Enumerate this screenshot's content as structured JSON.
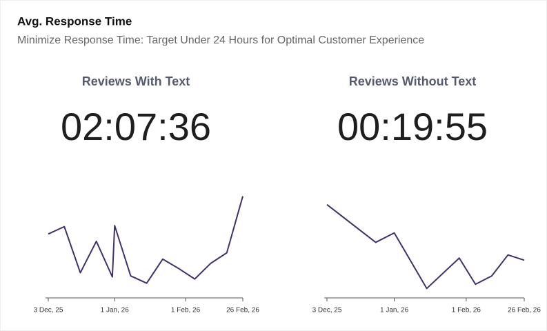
{
  "header": {
    "title": "Avg. Response Time",
    "subtitle": "Minimize Response Time: Target Under 24 Hours for Optimal Customer Experience"
  },
  "chart_data": [
    {
      "type": "line",
      "title": "Reviews With Text",
      "kpi": "02:07:36",
      "color": "#41306b",
      "x": [
        0,
        7,
        14,
        21,
        28,
        29,
        36,
        43,
        50,
        57,
        64,
        71,
        78,
        85
      ],
      "values": [
        61,
        68,
        24,
        54,
        20,
        69,
        21,
        14,
        37,
        28,
        18,
        33,
        43,
        97
      ],
      "xlim": [
        0,
        85
      ],
      "ylim": [
        0,
        100
      ],
      "xticks": [
        {
          "value": 0,
          "label": "3 Dec, 25"
        },
        {
          "value": 29,
          "label": "1 Jan, 26"
        },
        {
          "value": 60,
          "label": "1 Feb, 26"
        },
        {
          "value": 85,
          "label": "26 Feb, 26"
        }
      ]
    },
    {
      "type": "line",
      "title": "Reviews Without Text",
      "kpi": "00:19:55",
      "color": "#41306b",
      "x": [
        0,
        21,
        29,
        43,
        57,
        64,
        71,
        78,
        85
      ],
      "values": [
        89,
        53,
        62,
        9,
        38,
        13,
        21,
        41,
        36
      ],
      "xlim": [
        0,
        85
      ],
      "ylim": [
        0,
        100
      ],
      "xticks": [
        {
          "value": 0,
          "label": "3 Dec, 25"
        },
        {
          "value": 29,
          "label": "1 Jan, 26"
        },
        {
          "value": 60,
          "label": "1 Feb, 26"
        },
        {
          "value": 85,
          "label": "26 Feb, 26"
        }
      ]
    }
  ]
}
